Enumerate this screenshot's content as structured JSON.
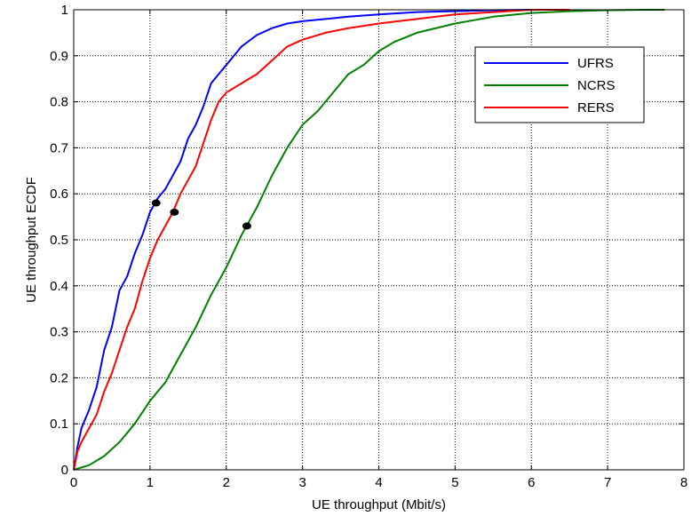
{
  "chart_data": {
    "type": "line",
    "title": "",
    "xlabel": "UE throughput (Mbit/s)",
    "ylabel": "UE throughput ECDF",
    "xlim": [
      0,
      8
    ],
    "ylim": [
      0,
      1
    ],
    "xticks": [
      0,
      1,
      2,
      3,
      4,
      5,
      6,
      7,
      8
    ],
    "yticks": [
      0,
      0.1,
      0.2,
      0.3,
      0.4,
      0.5,
      0.6,
      0.7,
      0.8,
      0.9,
      1
    ],
    "xtick_labels": [
      "0",
      "1",
      "2",
      "3",
      "4",
      "5",
      "6",
      "7",
      "8"
    ],
    "ytick_labels": [
      "0",
      "0.1",
      "0.2",
      "0.3",
      "0.4",
      "0.5",
      "0.6",
      "0.7",
      "0.8",
      "0.9",
      "1"
    ],
    "grid": true,
    "legend_position": "top-right",
    "series": [
      {
        "name": "UFRS",
        "color": "#0000ff",
        "x": [
          0,
          0.05,
          0.1,
          0.2,
          0.3,
          0.4,
          0.5,
          0.6,
          0.7,
          0.8,
          0.9,
          1.0,
          1.1,
          1.2,
          1.3,
          1.4,
          1.5,
          1.6,
          1.7,
          1.8,
          1.9,
          2.0,
          2.2,
          2.4,
          2.6,
          2.8,
          3.0,
          3.3,
          3.6,
          4.0,
          4.5,
          5.0,
          5.5,
          6.0,
          6.3
        ],
        "y": [
          0,
          0.05,
          0.09,
          0.13,
          0.18,
          0.26,
          0.31,
          0.39,
          0.42,
          0.47,
          0.51,
          0.56,
          0.59,
          0.61,
          0.64,
          0.67,
          0.72,
          0.75,
          0.79,
          0.84,
          0.86,
          0.88,
          0.92,
          0.945,
          0.96,
          0.97,
          0.975,
          0.98,
          0.985,
          0.99,
          0.995,
          0.997,
          0.999,
          1.0,
          1.0
        ]
      },
      {
        "name": "NCRS",
        "color": "#008000",
        "x": [
          0,
          0.2,
          0.4,
          0.6,
          0.8,
          1.0,
          1.2,
          1.4,
          1.6,
          1.8,
          2.0,
          2.2,
          2.4,
          2.6,
          2.8,
          3.0,
          3.2,
          3.4,
          3.6,
          3.8,
          4.0,
          4.2,
          4.5,
          5.0,
          5.5,
          6.0,
          6.5,
          7.0,
          7.5,
          7.75
        ],
        "y": [
          0,
          0.01,
          0.03,
          0.06,
          0.1,
          0.15,
          0.19,
          0.25,
          0.31,
          0.38,
          0.44,
          0.51,
          0.57,
          0.64,
          0.7,
          0.75,
          0.78,
          0.82,
          0.86,
          0.88,
          0.91,
          0.93,
          0.95,
          0.97,
          0.985,
          0.993,
          0.997,
          0.999,
          1.0,
          1.0
        ]
      },
      {
        "name": "RERS",
        "color": "#ff0000",
        "x": [
          0,
          0.05,
          0.1,
          0.2,
          0.3,
          0.4,
          0.5,
          0.6,
          0.7,
          0.8,
          0.9,
          1.0,
          1.1,
          1.2,
          1.3,
          1.4,
          1.5,
          1.6,
          1.7,
          1.8,
          1.9,
          2.0,
          2.2,
          2.4,
          2.6,
          2.8,
          3.0,
          3.3,
          3.6,
          4.0,
          4.5,
          5.0,
          5.5,
          6.0,
          6.5
        ],
        "y": [
          0,
          0.04,
          0.06,
          0.09,
          0.12,
          0.17,
          0.21,
          0.26,
          0.31,
          0.35,
          0.41,
          0.46,
          0.5,
          0.53,
          0.56,
          0.6,
          0.63,
          0.66,
          0.71,
          0.76,
          0.8,
          0.82,
          0.84,
          0.86,
          0.89,
          0.92,
          0.935,
          0.95,
          0.96,
          0.97,
          0.98,
          0.99,
          0.995,
          1.0,
          1.0
        ]
      }
    ],
    "markers": [
      {
        "x": 1.08,
        "y": 0.58,
        "color": "#000000"
      },
      {
        "x": 1.32,
        "y": 0.56,
        "color": "#000000"
      },
      {
        "x": 2.27,
        "y": 0.53,
        "color": "#000000"
      }
    ]
  }
}
